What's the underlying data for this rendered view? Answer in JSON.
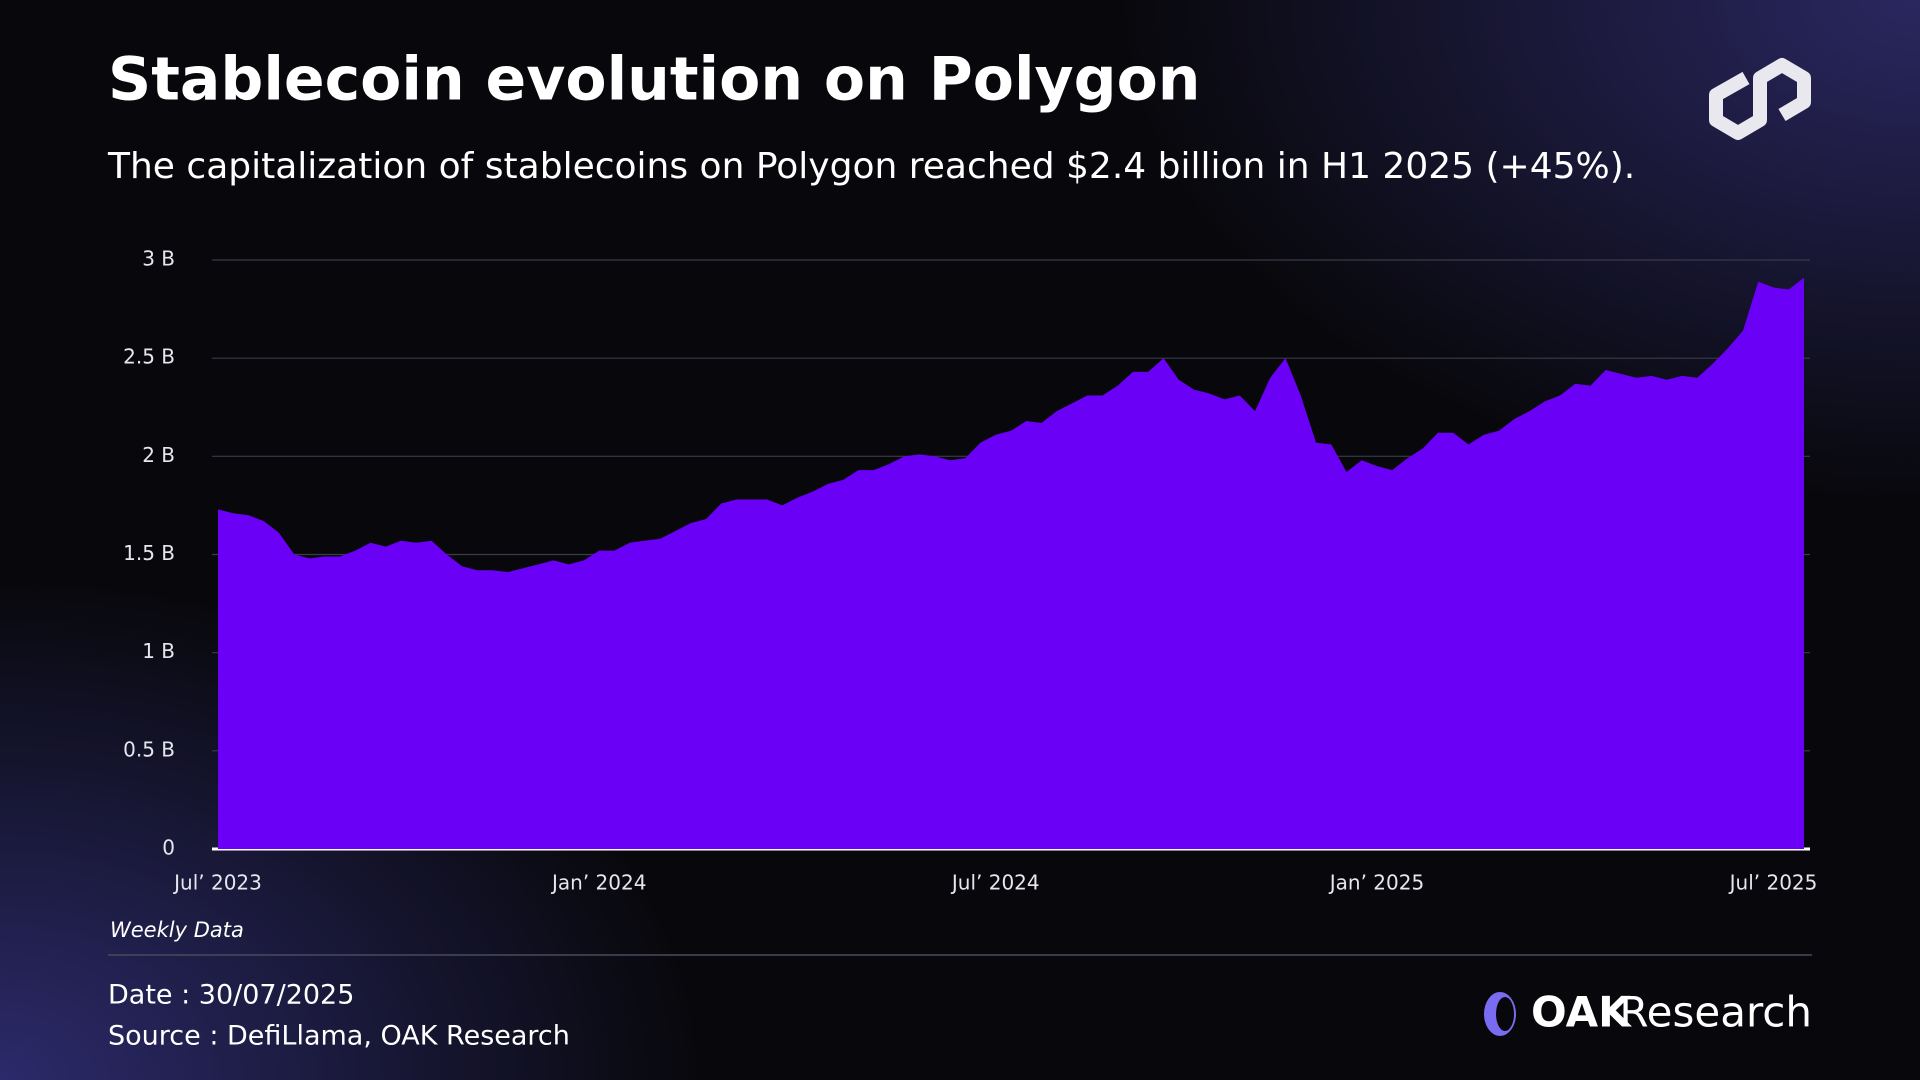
{
  "chart_data": {
    "type": "area",
    "title": "Stablecoin evolution on Polygon",
    "subtitle": "The capitalization of stablecoins on Polygon reached $2.4 billion in H1 2025 (+45%).",
    "note": "Weekly Data",
    "color": "#6b00f7",
    "grid": true,
    "ylim": [
      0,
      3
    ],
    "yticks": [
      0,
      {
        "value": 0.5,
        "label": "0.5 B"
      },
      {
        "value": 1,
        "label": "1 B"
      },
      {
        "value": 1.5,
        "label": "1.5 B"
      },
      {
        "value": 2,
        "label": "2 B"
      },
      {
        "value": 2.5,
        "label": "2.5 B"
      },
      {
        "value": 3,
        "label": "3 B"
      }
    ],
    "categories": [
      "Jul’ 2023",
      null,
      null,
      null,
      null,
      null,
      null,
      null,
      null,
      null,
      null,
      null,
      null,
      null,
      null,
      null,
      null,
      null,
      null,
      null,
      null,
      null,
      null,
      null,
      null,
      "Jan’ 2024",
      null,
      null,
      null,
      null,
      null,
      null,
      null,
      null,
      null,
      null,
      null,
      null,
      null,
      null,
      null,
      null,
      null,
      null,
      null,
      null,
      null,
      null,
      null,
      null,
      null,
      "Jul’ 2024",
      null,
      null,
      null,
      null,
      null,
      null,
      null,
      null,
      null,
      null,
      null,
      null,
      null,
      null,
      null,
      null,
      null,
      null,
      null,
      null,
      null,
      null,
      null,
      null,
      "Jan’ 2025",
      null,
      null,
      null,
      null,
      null,
      null,
      null,
      null,
      null,
      null,
      null,
      null,
      null,
      null,
      null,
      null,
      null,
      null,
      null,
      null,
      null,
      null,
      null,
      null,
      null,
      "Jul’ 2025",
      null,
      null
    ],
    "values": [
      1.73,
      1.71,
      1.7,
      1.67,
      1.61,
      1.5,
      1.48,
      1.49,
      1.49,
      1.52,
      1.56,
      1.54,
      1.57,
      1.56,
      1.57,
      1.5,
      1.44,
      1.42,
      1.42,
      1.41,
      1.43,
      1.45,
      1.47,
      1.45,
      1.47,
      1.52,
      1.52,
      1.56,
      1.57,
      1.58,
      1.62,
      1.66,
      1.68,
      1.76,
      1.78,
      1.78,
      1.78,
      1.75,
      1.79,
      1.82,
      1.86,
      1.88,
      1.93,
      1.93,
      1.96,
      2.0,
      2.01,
      2.0,
      1.98,
      1.99,
      2.07,
      2.11,
      2.13,
      2.18,
      2.17,
      2.23,
      2.27,
      2.31,
      2.31,
      2.36,
      2.43,
      2.43,
      2.5,
      2.39,
      2.34,
      2.32,
      2.29,
      2.31,
      2.23,
      2.4,
      2.5,
      2.31,
      2.07,
      2.06,
      1.92,
      1.98,
      1.95,
      1.93,
      1.99,
      2.04,
      2.12,
      2.12,
      2.06,
      2.11,
      2.13,
      2.19,
      2.23,
      2.28,
      2.31,
      2.37,
      2.36,
      2.44,
      2.42,
      2.4,
      2.41,
      2.39,
      2.41,
      2.4,
      2.47,
      2.55,
      2.64,
      2.89,
      2.86,
      2.85,
      2.91
    ]
  },
  "footer": {
    "date": "Date : 30/07/2025",
    "source": "Source : DefiLlama, OAK Research",
    "brand_bold": "OAK",
    "brand": "Research"
  }
}
